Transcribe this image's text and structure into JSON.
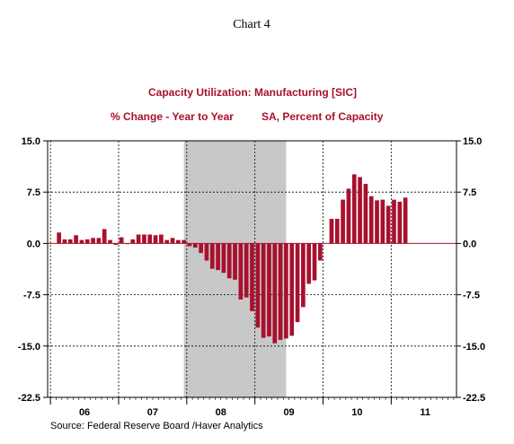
{
  "heading": "Chart 4",
  "source": "Source:  Federal Reserve Board /Haver Analytics",
  "chart_data": {
    "type": "bar",
    "title": "Capacity Utilization: Manufacturing [SIC]",
    "subtitle_left": "% Change - Year to Year",
    "subtitle_right": "SA, Percent of Capacity",
    "y_ticks": [
      "15.0",
      "7.5",
      "0.0",
      "-7.5",
      "-15.0",
      "-22.5"
    ],
    "y_tick_values": [
      15,
      7.5,
      0,
      -7.5,
      -15,
      -22.5
    ],
    "ylim": [
      -22.5,
      15
    ],
    "x_ticks": [
      "06",
      "07",
      "08",
      "09",
      "10",
      "11"
    ],
    "x_range": [
      "2005-12",
      "2011-12"
    ],
    "grid": "dashed, both axes",
    "recession_shading": {
      "start": "2007-12",
      "end": "2009-06"
    },
    "bar_color": "#a8102e",
    "shade_color": "#c8c8c8",
    "series": [
      {
        "months": [
          "2006-01",
          "2006-02",
          "2006-03",
          "2006-04",
          "2006-05",
          "2006-06",
          "2006-07",
          "2006-08",
          "2006-09",
          "2006-10",
          "2006-11",
          "2006-12",
          "2007-01",
          "2007-02",
          "2007-03",
          "2007-04",
          "2007-05",
          "2007-06",
          "2007-07",
          "2007-08",
          "2007-09",
          "2007-10",
          "2007-11",
          "2007-12",
          "2008-01",
          "2008-02",
          "2008-03",
          "2008-04",
          "2008-05",
          "2008-06",
          "2008-07",
          "2008-08",
          "2008-09",
          "2008-10",
          "2008-11",
          "2008-12",
          "2009-01",
          "2009-02",
          "2009-03",
          "2009-04",
          "2009-05",
          "2009-06",
          "2009-07",
          "2009-08",
          "2009-09",
          "2009-10",
          "2009-11",
          "2009-12",
          "2010-01",
          "2010-02",
          "2010-03",
          "2010-04",
          "2010-05",
          "2010-06",
          "2010-07",
          "2010-08",
          "2010-09",
          "2010-10",
          "2010-11",
          "2010-12",
          "2011-01",
          "2011-02",
          "2011-03"
        ],
        "values": [
          0,
          1.6,
          0.6,
          0.6,
          1.2,
          0.5,
          0.6,
          0.8,
          0.8,
          2.1,
          0.5,
          -0.2,
          0.9,
          -0.1,
          0.6,
          1.3,
          1.3,
          1.3,
          1.2,
          1.3,
          0.5,
          0.8,
          0.5,
          0.5,
          -0.4,
          -0.6,
          -1.4,
          -2.5,
          -3.7,
          -3.9,
          -4.3,
          -5.1,
          -5.3,
          -8.2,
          -7.9,
          -9.9,
          -12.3,
          -13.8,
          -13.6,
          -14.6,
          -14.1,
          -13.9,
          -13.5,
          -11.5,
          -9.3,
          -5.9,
          -5.4,
          -2.5,
          0,
          3.6,
          3.6,
          6.4,
          8.0,
          10.1,
          9.7,
          8.7,
          6.9,
          6.3,
          6.4,
          5.5,
          6.4,
          6.1,
          6.7
        ]
      }
    ]
  }
}
